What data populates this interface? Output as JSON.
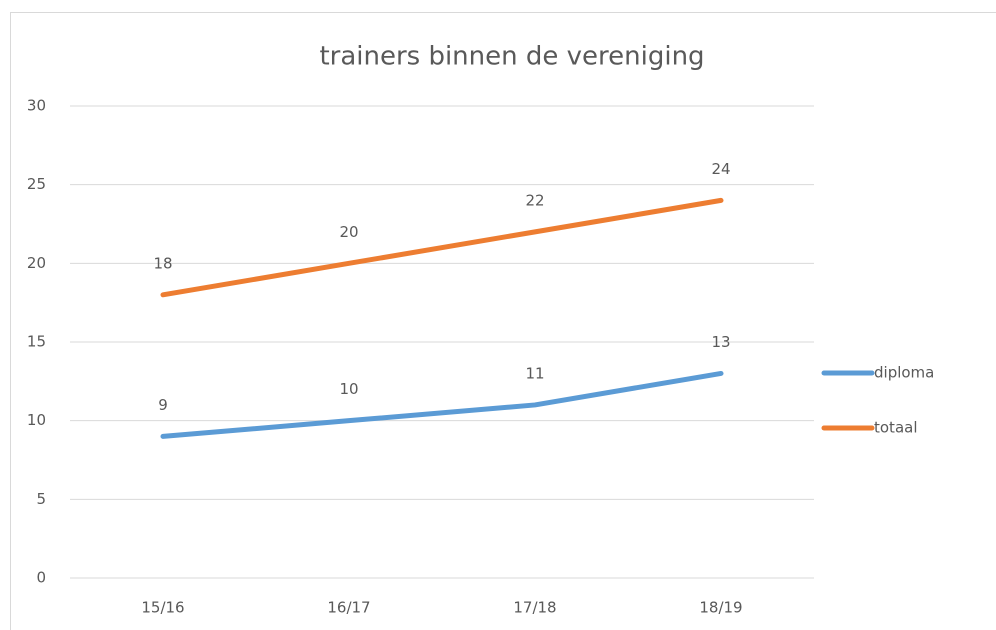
{
  "chart_data": {
    "type": "line",
    "title": "trainers binnen de vereniging",
    "categories": [
      "15/16",
      "16/17",
      "17/18",
      "18/19"
    ],
    "series": [
      {
        "name": "diploma",
        "color": "#5b9bd5",
        "values": [
          9,
          10,
          11,
          13
        ]
      },
      {
        "name": "totaal",
        "color": "#ed7d31",
        "values": [
          18,
          20,
          22,
          24
        ]
      }
    ],
    "ylim": [
      0,
      30
    ],
    "yticks": [
      0,
      5,
      10,
      15,
      20,
      25,
      30
    ],
    "grid": true,
    "legend": "right"
  }
}
